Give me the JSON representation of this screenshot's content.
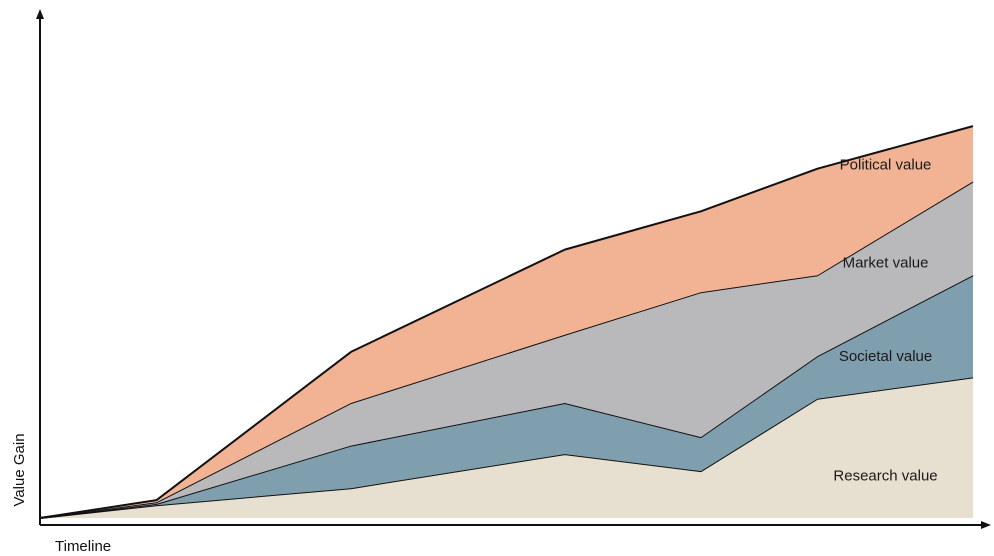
{
  "chart_data": {
    "type": "area",
    "stacked": true,
    "title": "",
    "xlabel": "Timeline",
    "ylabel": "Value Gain",
    "x_ticks_shown": false,
    "y_ticks_shown": false,
    "grid": false,
    "legend": "inline labels",
    "x": [
      0,
      12,
      32,
      54,
      68,
      80,
      96
    ],
    "xlim": [
      0,
      96
    ],
    "ylim": [
      0,
      100
    ],
    "series": [
      {
        "name": "Research value",
        "label_at": [
          87,
          10
        ],
        "color": "#e7e0d0",
        "values": [
          0,
          3,
          7,
          15,
          11,
          28,
          33
        ]
      },
      {
        "name": "Societal value",
        "label_at": [
          87,
          38
        ],
        "color": "#7f9fae",
        "values": [
          0,
          0.3,
          10,
          12,
          8,
          10,
          24
        ]
      },
      {
        "name": "Market value",
        "label_at": [
          87,
          60
        ],
        "color": "#b9b9bb",
        "values": [
          0,
          0.4,
          10,
          16,
          34,
          19,
          22
        ]
      },
      {
        "name": "Political value",
        "label_at": [
          87,
          83
        ],
        "color": "#f1b394",
        "values": [
          0,
          0.5,
          12,
          20,
          19,
          25,
          13
        ]
      }
    ]
  }
}
